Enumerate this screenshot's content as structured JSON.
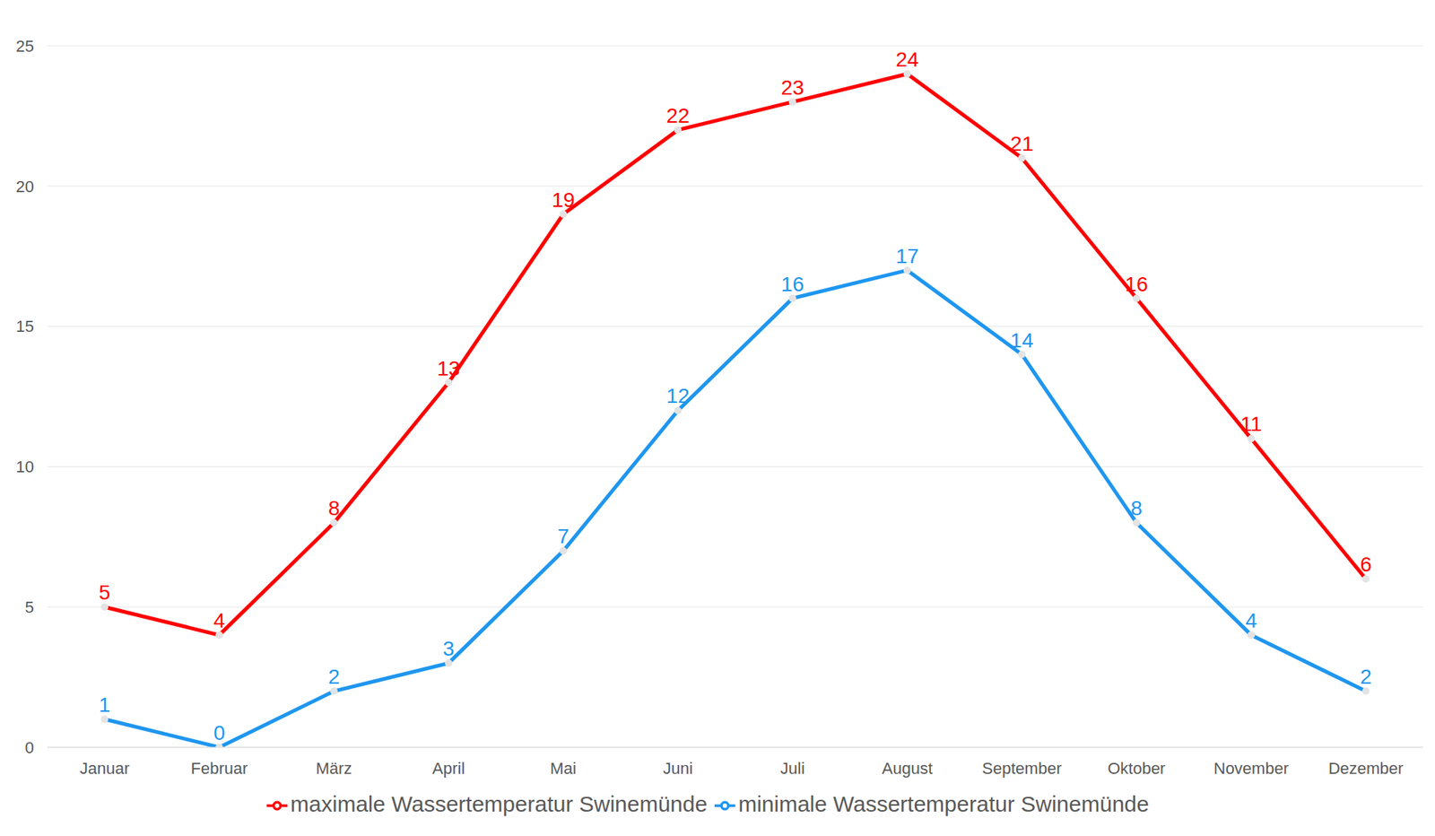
{
  "chart_data": {
    "type": "line",
    "categories": [
      "Januar",
      "Februar",
      "März",
      "April",
      "Mai",
      "Juni",
      "Juli",
      "August",
      "September",
      "Oktober",
      "November",
      "Dezember"
    ],
    "series": [
      {
        "name": "minimale Wassertemperatur Swinemünde",
        "color": "#1e96f0",
        "values": [
          1,
          0,
          2,
          3,
          7,
          12,
          16,
          17,
          14,
          8,
          4,
          2
        ],
        "marker": "circle",
        "line_style": "solid"
      },
      {
        "name": "maximale Wassertemperatur Swinemünde",
        "color": "#ff0000",
        "values": [
          5,
          4,
          8,
          13,
          19,
          22,
          23,
          24,
          21,
          16,
          11,
          6
        ],
        "marker": "circle",
        "line_style": "solid"
      }
    ],
    "ylim": [
      0,
      25
    ],
    "yticks": [
      0,
      5,
      10,
      15,
      20,
      25
    ],
    "grid": true,
    "data_labels": true,
    "legend": "bottom"
  }
}
